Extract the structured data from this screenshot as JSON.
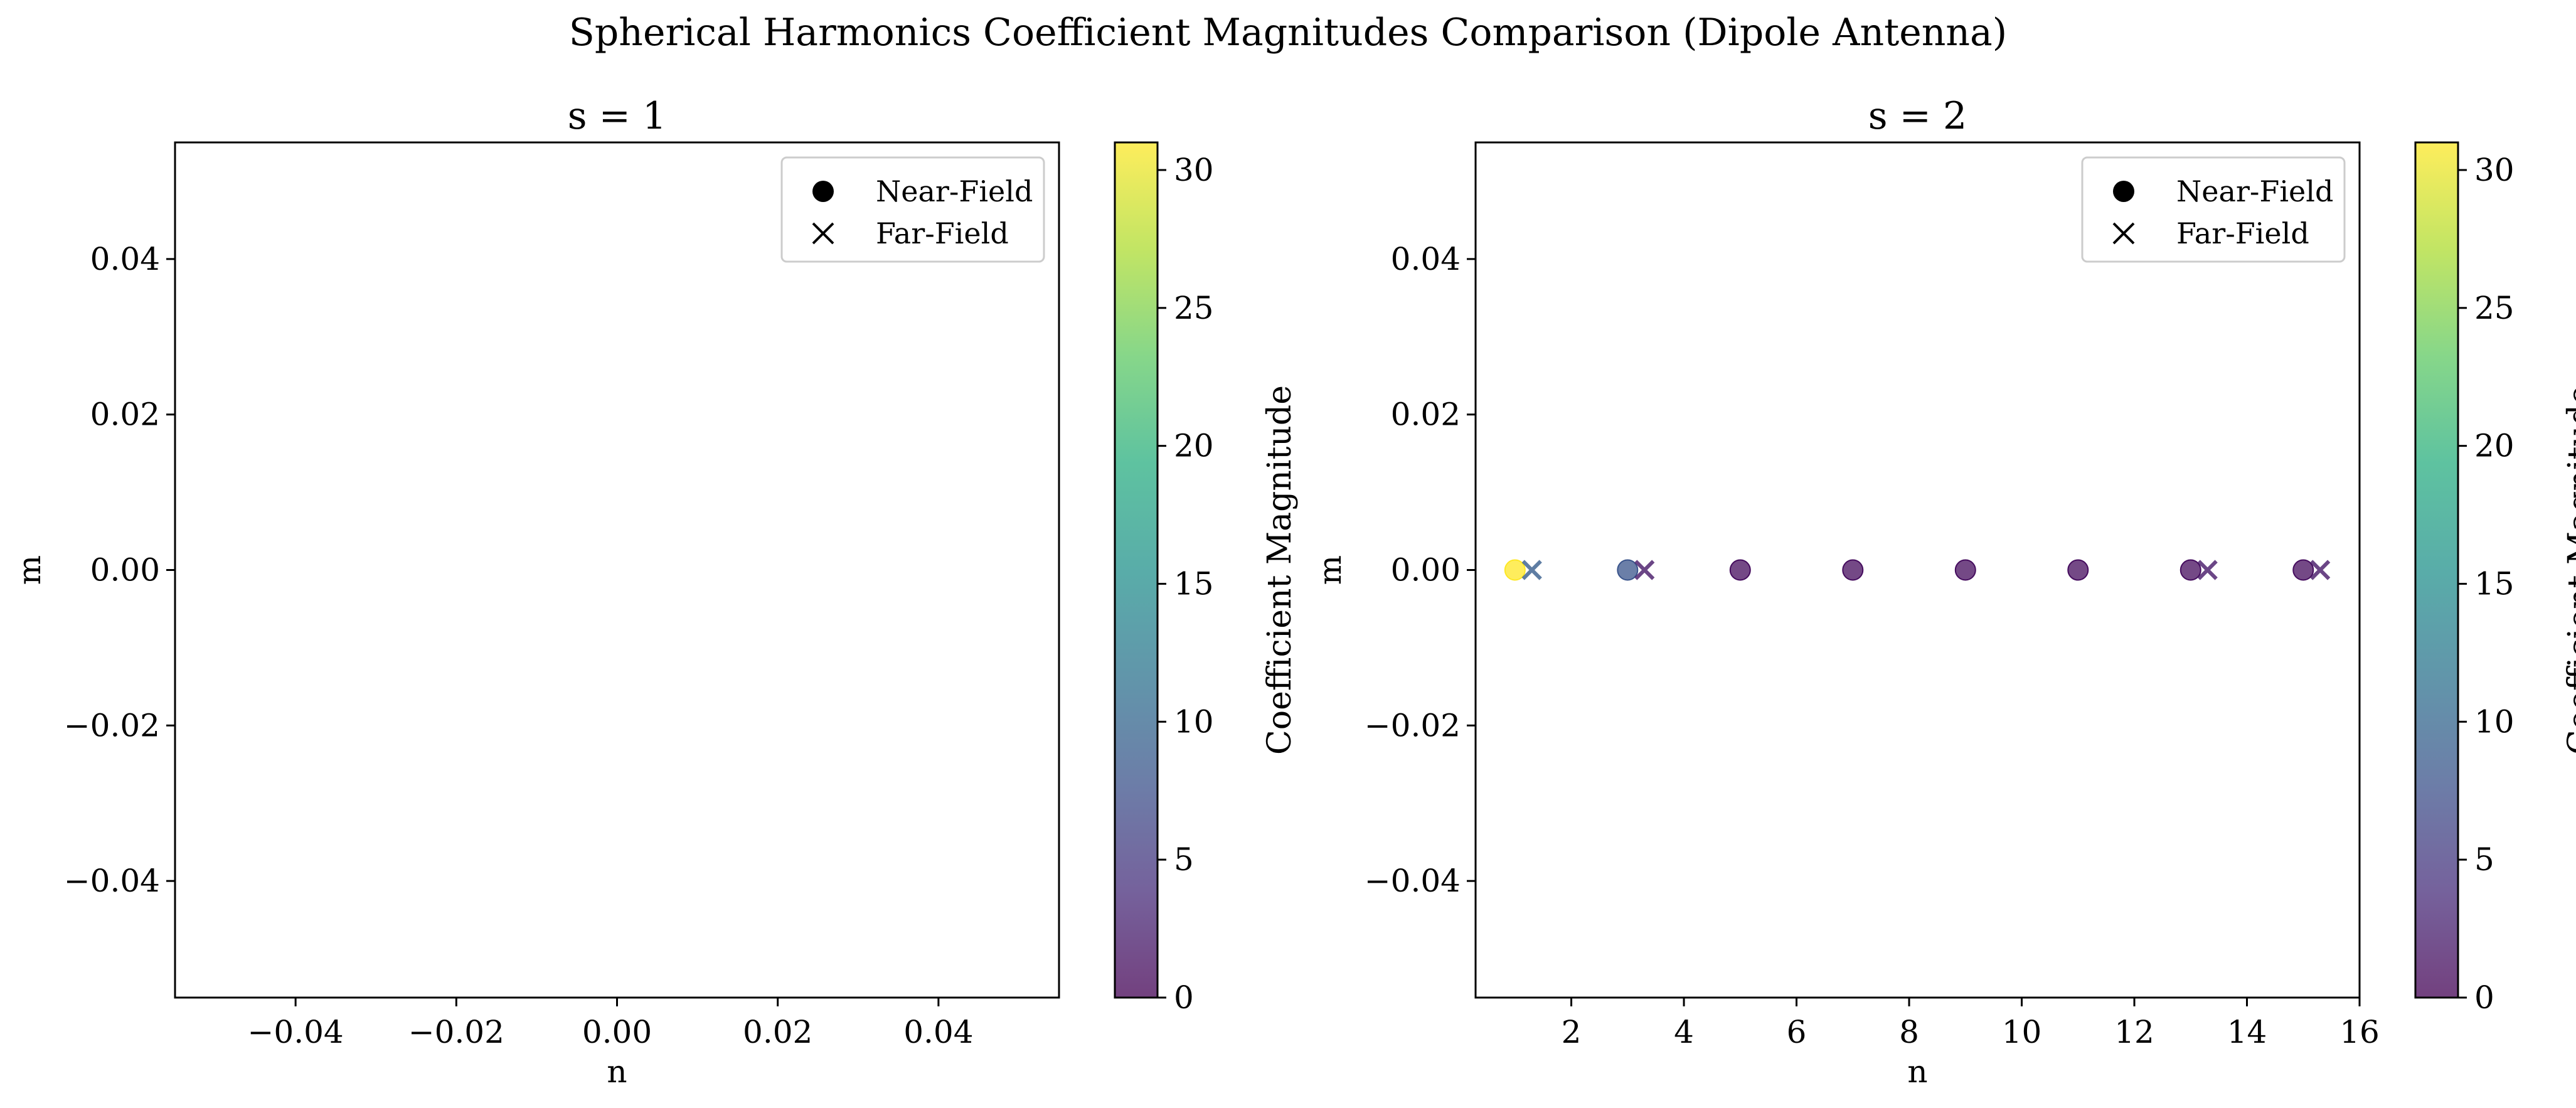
{
  "chart_data": {
    "title": "Spherical Harmonics Coefficient Magnitudes Comparison (Dipole Antenna)",
    "type": "scatter",
    "colormap": "viridis",
    "subplots": [
      {
        "title": "s = 1",
        "xlabel": "n",
        "ylabel": "m",
        "xlim": [
          -0.055,
          0.055
        ],
        "ylim": [
          -0.055,
          0.055
        ],
        "xticks": [
          "−0.04",
          "−0.02",
          "0.00",
          "0.02",
          "0.04"
        ],
        "xtick_values": [
          -0.04,
          -0.02,
          0,
          0.02,
          0.04
        ],
        "yticks": [
          "−0.04",
          "−0.02",
          "0.00",
          "0.02",
          "0.04"
        ],
        "ytick_values": [
          -0.04,
          -0.02,
          0,
          0.02,
          0.04
        ],
        "legend": {
          "placement": "top-right",
          "entries": [
            "Near-Field",
            "Far-Field"
          ]
        },
        "series": [
          {
            "name": "Near-Field",
            "marker": "circle",
            "points": []
          },
          {
            "name": "Far-Field",
            "marker": "x",
            "points": []
          }
        ],
        "colorbar": {
          "label": "Coefficient Magnitude",
          "range": [
            0,
            31
          ],
          "ticks": [
            "0",
            "5",
            "10",
            "15",
            "20",
            "25",
            "30"
          ],
          "tick_values": [
            0,
            5,
            10,
            15,
            20,
            25,
            30
          ]
        }
      },
      {
        "title": "s = 2",
        "xlabel": "n",
        "ylabel": "m",
        "xlim": [
          0.3,
          16
        ],
        "ylim": [
          -0.055,
          0.055
        ],
        "xticks": [
          "2",
          "4",
          "6",
          "8",
          "10",
          "12",
          "14",
          "16"
        ],
        "xtick_values": [
          2,
          4,
          6,
          8,
          10,
          12,
          14,
          16
        ],
        "yticks": [
          "−0.04",
          "−0.02",
          "0.00",
          "0.02",
          "0.04"
        ],
        "ytick_values": [
          -0.04,
          -0.02,
          0,
          0.02,
          0.04
        ],
        "legend": {
          "placement": "top-right",
          "entries": [
            "Near-Field",
            "Far-Field"
          ]
        },
        "series": [
          {
            "name": "Near-Field",
            "marker": "circle",
            "points": [
              {
                "x": 1,
                "y": 0,
                "v": 31
              },
              {
                "x": 3,
                "y": 0,
                "v": 8
              },
              {
                "x": 5,
                "y": 0,
                "v": 1
              },
              {
                "x": 7,
                "y": 0,
                "v": 1
              },
              {
                "x": 9,
                "y": 0,
                "v": 1
              },
              {
                "x": 11,
                "y": 0,
                "v": 1
              },
              {
                "x": 13,
                "y": 0,
                "v": 1
              },
              {
                "x": 15,
                "y": 0,
                "v": 1
              }
            ]
          },
          {
            "name": "Far-Field",
            "marker": "x",
            "points": [
              {
                "x": 1.3,
                "y": 0,
                "v": 9
              },
              {
                "x": 3.3,
                "y": 0,
                "v": 2
              },
              {
                "x": 13.3,
                "y": 0,
                "v": 2
              },
              {
                "x": 15.3,
                "y": 0,
                "v": 2
              }
            ]
          }
        ],
        "colorbar": {
          "label": "Coefficient Magnitude",
          "range": [
            0,
            31
          ],
          "ticks": [
            "0",
            "5",
            "10",
            "15",
            "20",
            "25",
            "30"
          ],
          "tick_values": [
            0,
            5,
            10,
            15,
            20,
            25,
            30
          ]
        }
      }
    ]
  }
}
